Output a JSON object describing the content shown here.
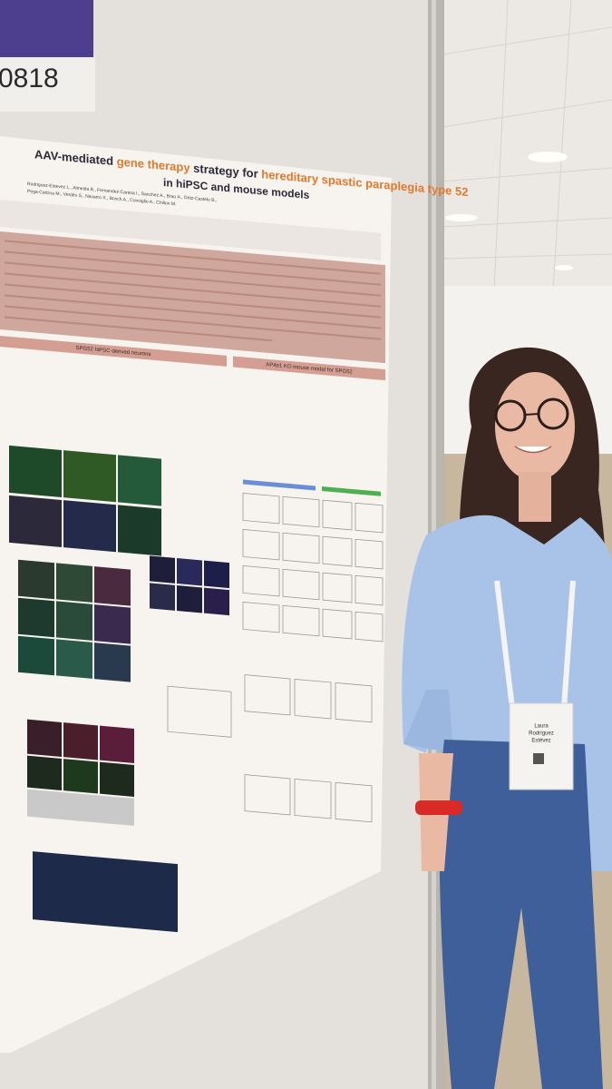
{
  "banner_number": "0818",
  "poster": {
    "title": [
      "AAV-mediated ",
      "gene therapy",
      " strategy for ",
      "hereditary spastic paraplegia type 52"
    ],
    "subtitle": "in hiPSC and mouse models",
    "authors": [
      "Rodriguez-Estevez L., Almeida B., Fernandez-Carasa I., Sanchez A., Brao A., Ortiz-Castelo B.,",
      "Pega-Calcina M., Verdés S., Navarro X., Bosch A., Consiglio A., Chillon M."
    ],
    "sections": [
      "SPG52 hiPSC-derived neurons",
      "AP4e1 KO mouse model for SPG52"
    ]
  },
  "badge": {
    "name_lines": [
      "Laura",
      "Rodríguez",
      "Estévez"
    ]
  }
}
